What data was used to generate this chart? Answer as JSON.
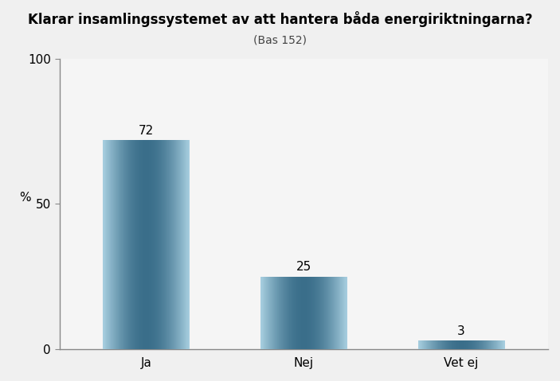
{
  "title": "Klarar insamlingssystemet av att hantera båda energiriktningarna?",
  "subtitle": "(Bas 152)",
  "categories": [
    "Ja",
    "Nej",
    "Vet ej"
  ],
  "values": [
    72,
    25,
    3
  ],
  "bar_color_light": "#a8cfe0",
  "bar_color_mid": "#5b9ab8",
  "bar_color_dark": "#3a6e8a",
  "background_color": "#f0f0f0",
  "plot_bg_color": "#f5f5f5",
  "ylim": [
    0,
    100
  ],
  "yticks": [
    0,
    50,
    100
  ],
  "ylabel": "%",
  "title_fontsize": 12,
  "subtitle_fontsize": 10,
  "label_fontsize": 11,
  "tick_fontsize": 11,
  "value_fontsize": 11,
  "bar_width": 0.55,
  "spine_color": "#888888"
}
